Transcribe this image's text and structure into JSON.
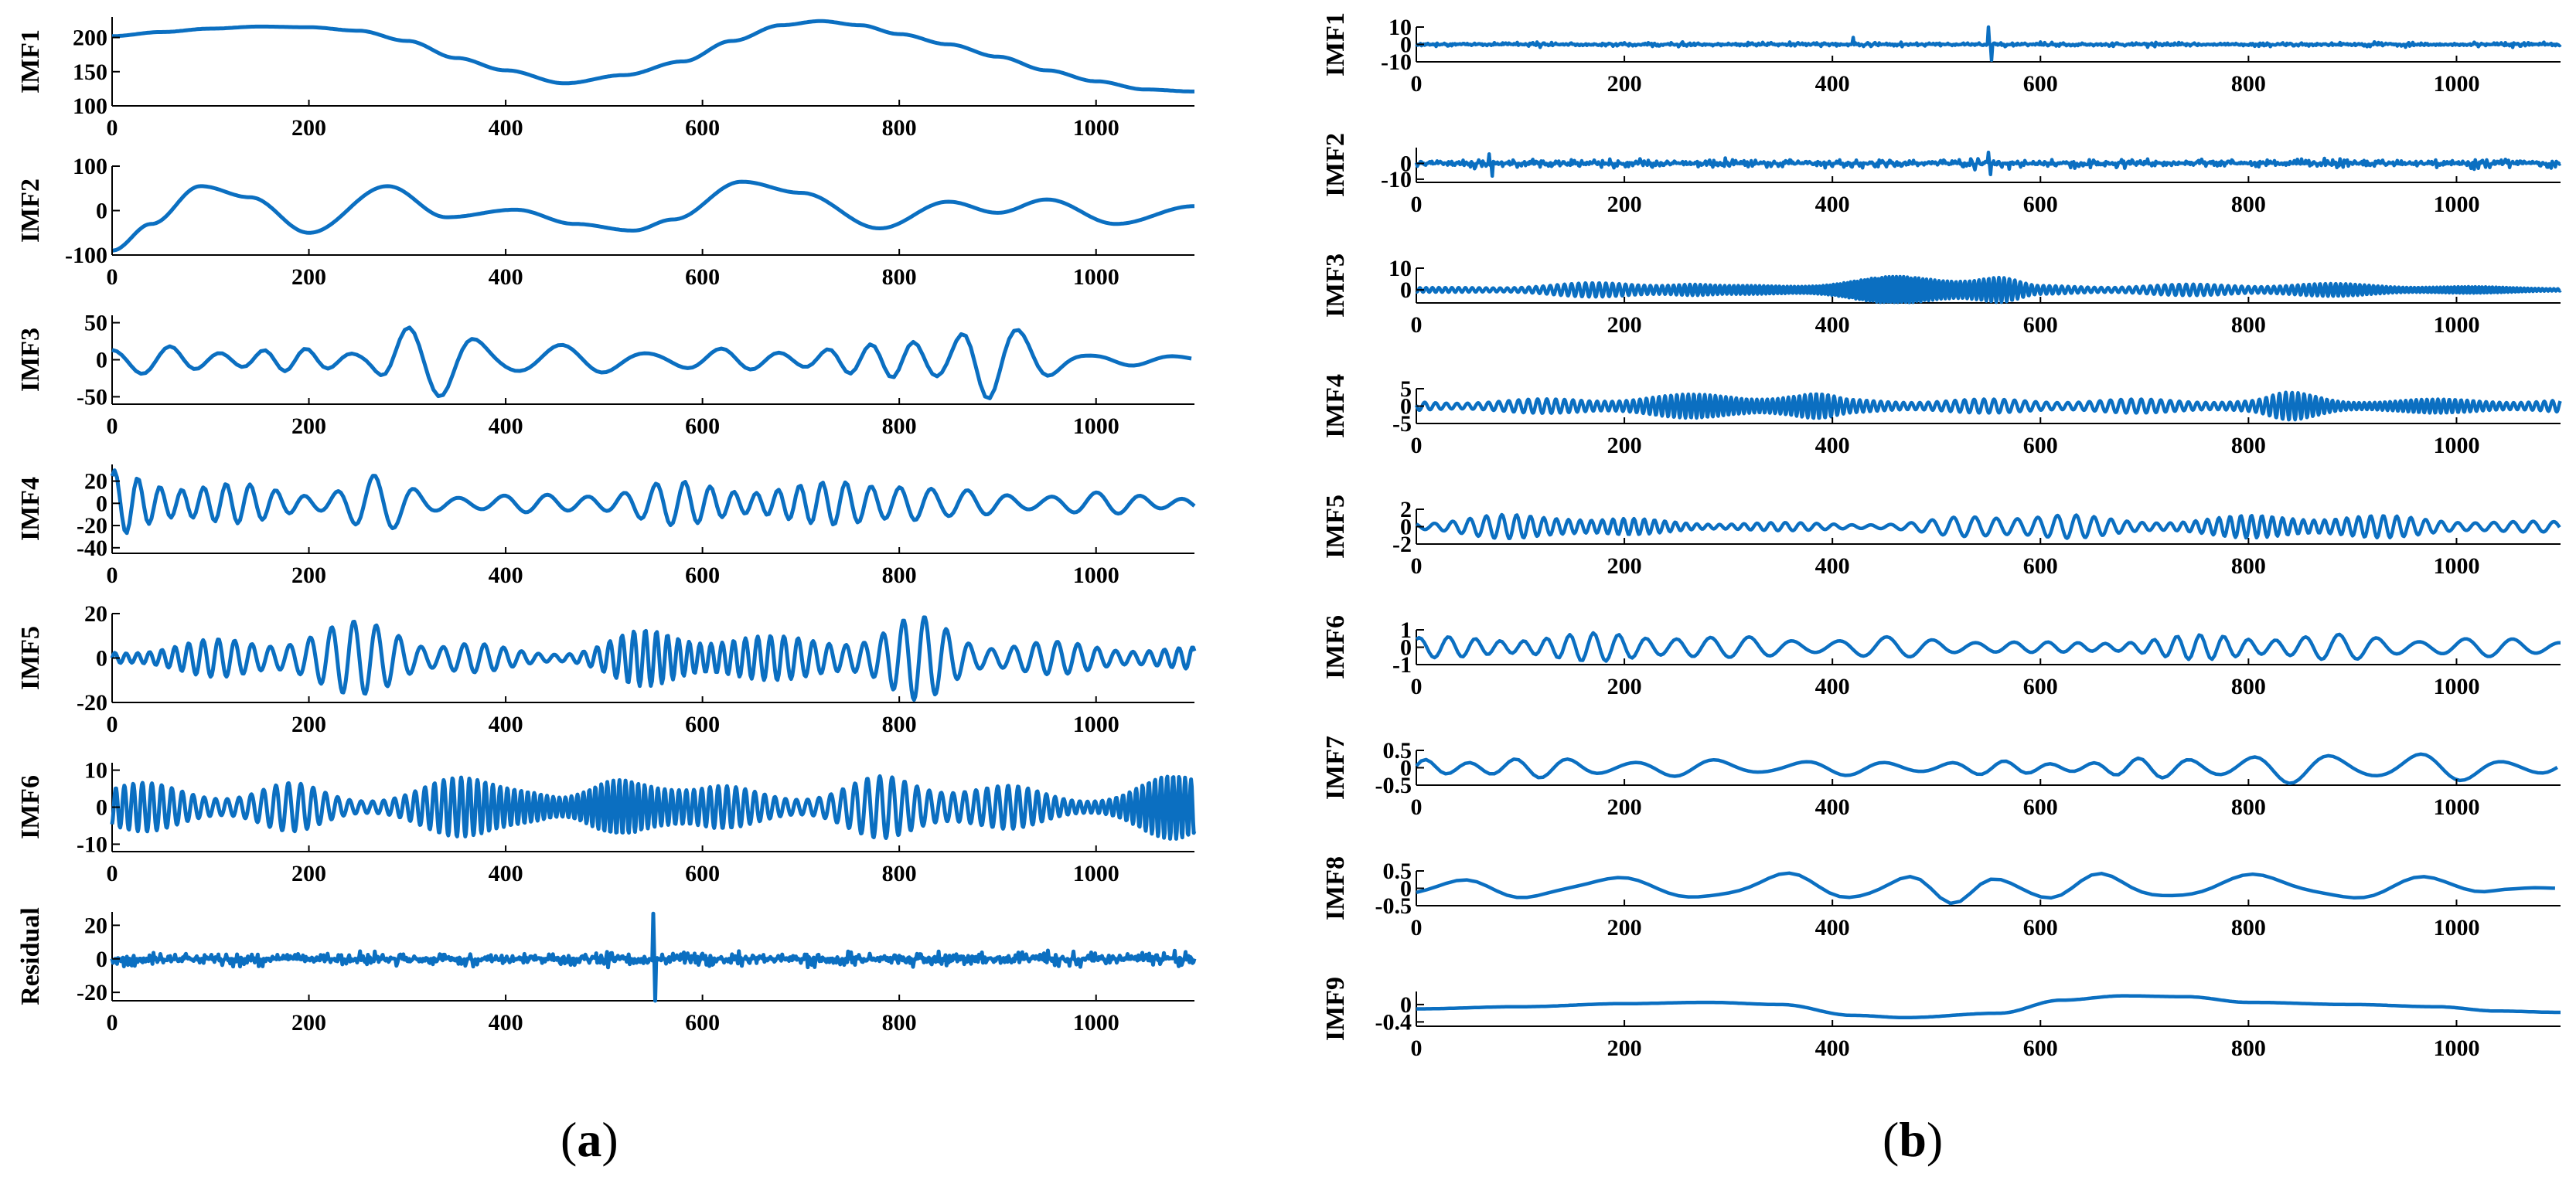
{
  "figure": {
    "caption_a": {
      "open": "(",
      "letter": "a",
      "close": ")"
    },
    "caption_b": {
      "open": "(",
      "letter": "b",
      "close": ")"
    }
  },
  "colors": {
    "line": "#0b6fc1",
    "axis": "#000000"
  },
  "chart_data": [
    {
      "type": "line",
      "panel": "a",
      "title": "",
      "xlabel": "",
      "x_range": [
        0,
        1100
      ],
      "x_ticks": [
        0,
        200,
        400,
        600,
        800,
        1000
      ],
      "series": [
        {
          "name": "IMF1",
          "ylabel": "IMF1",
          "ylim": [
            100,
            230
          ],
          "yticks": [
            100,
            150,
            200
          ],
          "points": [
            [
              0,
              202
            ],
            [
              50,
              208
            ],
            [
              100,
              213
            ],
            [
              150,
              216
            ],
            [
              200,
              215
            ],
            [
              250,
              210
            ],
            [
              300,
              195
            ],
            [
              350,
              170
            ],
            [
              400,
              152
            ],
            [
              460,
              133
            ],
            [
              520,
              145
            ],
            [
              580,
              165
            ],
            [
              630,
              195
            ],
            [
              680,
              218
            ],
            [
              720,
              224
            ],
            [
              760,
              218
            ],
            [
              800,
              205
            ],
            [
              850,
              190
            ],
            [
              900,
              172
            ],
            [
              950,
              152
            ],
            [
              1000,
              136
            ],
            [
              1050,
              124
            ],
            [
              1100,
              121
            ]
          ]
        },
        {
          "name": "IMF2",
          "ylabel": "IMF2",
          "ylim": [
            -100,
            100
          ],
          "yticks": [
            -100,
            0,
            100
          ],
          "synth": {
            "mode": "smooth",
            "offset": 0,
            "amp": 55,
            "base": 120,
            "noise": 0.6,
            "seed": 2
          },
          "points": [
            [
              0,
              -90
            ],
            [
              40,
              -30
            ],
            [
              90,
              55
            ],
            [
              140,
              30
            ],
            [
              200,
              -50
            ],
            [
              280,
              55
            ],
            [
              340,
              -15
            ],
            [
              410,
              2
            ],
            [
              470,
              -30
            ],
            [
              530,
              -45
            ],
            [
              570,
              -20
            ],
            [
              640,
              65
            ],
            [
              700,
              40
            ],
            [
              780,
              -40
            ],
            [
              850,
              20
            ],
            [
              900,
              -5
            ],
            [
              950,
              25
            ],
            [
              1020,
              -30
            ],
            [
              1100,
              10
            ]
          ]
        },
        {
          "name": "IMF3",
          "ylabel": "IMF3",
          "ylim": [
            -60,
            60
          ],
          "yticks": [
            -50,
            0,
            50
          ],
          "synth": {
            "mode": "osc",
            "period": 78,
            "amps": [
              [
                0,
                20
              ],
              [
                250,
                15
              ],
              [
                290,
                55
              ],
              [
                330,
                50
              ],
              [
                400,
                30
              ],
              [
                480,
                20
              ],
              [
                600,
                15
              ],
              [
                760,
                20
              ],
              [
                840,
                45
              ],
              [
                880,
                60
              ],
              [
                930,
                40
              ],
              [
                1000,
                10
              ],
              [
                1100,
                5
              ]
            ],
            "seed": 3
          }
        },
        {
          "name": "IMF4",
          "ylabel": "IMF4",
          "ylim": [
            -45,
            35
          ],
          "yticks": [
            -40,
            -20,
            0,
            20
          ],
          "synth": {
            "mode": "osc",
            "period": 40,
            "amps": [
              [
                0,
                30
              ],
              [
                60,
                25
              ],
              [
                200,
                12
              ],
              [
                260,
                28
              ],
              [
                330,
                10
              ],
              [
                450,
                8
              ],
              [
                560,
                20
              ],
              [
                700,
                18
              ],
              [
                800,
                28
              ],
              [
                850,
                12
              ],
              [
                1000,
                10
              ],
              [
                1100,
                8
              ]
            ],
            "seed": 4
          }
        },
        {
          "name": "IMF5",
          "ylabel": "IMF5",
          "ylim": [
            -20,
            20
          ],
          "yticks": [
            -20,
            0,
            20
          ],
          "synth": {
            "mode": "osc",
            "period": 20,
            "amps": [
              [
                0,
                4
              ],
              [
                150,
                10
              ],
              [
                280,
                18
              ],
              [
                330,
                8
              ],
              [
                450,
                3
              ],
              [
                560,
                14
              ],
              [
                680,
                10
              ],
              [
                760,
                12
              ],
              [
                820,
                19
              ],
              [
                900,
                8
              ],
              [
                1100,
                5
              ]
            ],
            "seed": 5
          }
        },
        {
          "name": "IMF6",
          "ylabel": "IMF6",
          "ylim": [
            -12,
            12
          ],
          "yticks": [
            -10,
            0,
            10
          ],
          "synth": {
            "mode": "osc",
            "period": 11,
            "amps": [
              [
                0,
                8
              ],
              [
                100,
                4
              ],
              [
                170,
                7
              ],
              [
                250,
                3
              ],
              [
                400,
                10
              ],
              [
                460,
                3
              ],
              [
                540,
                11
              ],
              [
                600,
                6
              ],
              [
                700,
                4
              ],
              [
                800,
                9
              ],
              [
                900,
                6
              ],
              [
                1000,
                3
              ],
              [
                1100,
                10
              ]
            ],
            "seed": 6
          }
        },
        {
          "name": "Residual",
          "ylabel": "Residual",
          "ylim": [
            -25,
            28
          ],
          "yticks": [
            -20,
            0,
            20
          ],
          "synth": {
            "mode": "noise",
            "amp": 5,
            "spikes": [
              [
                550,
                27
              ],
              [
                552,
                -25
              ]
            ],
            "seed": 7
          }
        }
      ]
    },
    {
      "type": "line",
      "panel": "b",
      "title": "",
      "xlabel": "",
      "x_range": [
        0,
        1100
      ],
      "x_ticks": [
        0,
        200,
        400,
        600,
        800,
        1000
      ],
      "series": [
        {
          "name": "IMF1",
          "ylabel": "IMF1",
          "ylim": [
            -10,
            10
          ],
          "yticks": [
            -10,
            0,
            10
          ],
          "synth": {
            "mode": "noise",
            "amp": 1.5,
            "spikes": [
              [
                550,
                10
              ],
              [
                553,
                -9
              ],
              [
                420,
                4
              ]
            ],
            "seed": 11
          }
        },
        {
          "name": "IMF2",
          "ylabel": "IMF2",
          "ylim": [
            -12,
            10
          ],
          "yticks": [
            -10,
            0
          ],
          "synth": {
            "mode": "noise",
            "amp": 3.5,
            "spikes": [
              [
                550,
                7
              ],
              [
                552,
                -7
              ],
              [
                70,
                6
              ],
              [
                73,
                -8
              ]
            ],
            "seed": 12
          }
        },
        {
          "name": "IMF3",
          "ylabel": "IMF3",
          "ylim": [
            -6,
            10
          ],
          "yticks": [
            0,
            10
          ],
          "synth": {
            "mode": "osc",
            "period": 6,
            "amps": [
              [
                0,
                1
              ],
              [
                250,
                4
              ],
              [
                300,
                2
              ],
              [
                550,
                8
              ],
              [
                600,
                2
              ],
              [
                850,
                3
              ],
              [
                1100,
                1
              ]
            ],
            "seed": 13
          }
        },
        {
          "name": "IMF4",
          "ylabel": "IMF4",
          "ylim": [
            -5,
            5
          ],
          "yticks": [
            -5,
            0,
            5
          ],
          "synth": {
            "mode": "osc",
            "period": 9,
            "amps": [
              [
                0,
                1.5
              ],
              [
                380,
                4
              ],
              [
                420,
                2
              ],
              [
                800,
                2
              ],
              [
                840,
                4
              ],
              [
                900,
                2
              ],
              [
                1100,
                2
              ]
            ],
            "seed": 14
          }
        },
        {
          "name": "IMF5",
          "ylabel": "IMF5",
          "ylim": [
            -2,
            2
          ],
          "yticks": [
            -2,
            0,
            2
          ],
          "synth": {
            "mode": "osc",
            "period": 18,
            "amps": [
              [
                0,
                0.6
              ],
              [
                130,
                1.8
              ],
              [
                180,
                1
              ],
              [
                300,
                0.5
              ],
              [
                450,
                0.4
              ],
              [
                580,
                1.8
              ],
              [
                700,
                0.8
              ],
              [
                850,
                1.5
              ],
              [
                1100,
                0.6
              ]
            ],
            "seed": 15
          }
        },
        {
          "name": "IMF6",
          "ylabel": "IMF6",
          "ylim": [
            -1,
            1
          ],
          "yticks": [
            -1,
            0,
            1
          ],
          "synth": {
            "mode": "osc",
            "period": 40,
            "amps": [
              [
                0,
                0.6
              ],
              [
                250,
                0.9
              ],
              [
                300,
                0.6
              ],
              [
                500,
                0.6
              ],
              [
                600,
                0.3
              ],
              [
                800,
                0.8
              ],
              [
                1100,
                0.5
              ]
            ],
            "seed": 16
          }
        },
        {
          "name": "IMF7",
          "ylabel": "IMF7",
          "ylim": [
            -0.5,
            0.5
          ],
          "yticks": [
            -0.5,
            0,
            0.5
          ],
          "synth": {
            "mode": "osc",
            "period": 75,
            "amps": [
              [
                0,
                0.3
              ],
              [
                600,
                0.2
              ],
              [
                850,
                0.45
              ],
              [
                950,
                0.45
              ],
              [
                1100,
                0.25
              ]
            ],
            "seed": 17
          }
        },
        {
          "name": "IMF8",
          "ylabel": "IMF8",
          "ylim": [
            -0.5,
            0.5
          ],
          "yticks": [
            -0.5,
            0,
            0.5
          ],
          "synth": {
            "mode": "osc",
            "period": 155,
            "amps": [
              [
                0,
                0.3
              ],
              [
                400,
                0.45
              ],
              [
                1000,
                0.4
              ],
              [
                1050,
                0.05
              ],
              [
                1100,
                0.0
              ]
            ],
            "offset": 0.0,
            "seed": 18
          }
        },
        {
          "name": "IMF9",
          "ylabel": "IMF9",
          "ylim": [
            -0.5,
            0.3
          ],
          "yticks": [
            -0.4,
            0
          ],
          "points": [
            [
              0,
              -0.1
            ],
            [
              100,
              -0.05
            ],
            [
              200,
              0.02
            ],
            [
              280,
              0.05
            ],
            [
              350,
              0.0
            ],
            [
              420,
              -0.25
            ],
            [
              470,
              -0.3
            ],
            [
              560,
              -0.2
            ],
            [
              620,
              0.1
            ],
            [
              680,
              0.2
            ],
            [
              740,
              0.18
            ],
            [
              800,
              0.05
            ],
            [
              900,
              0.0
            ],
            [
              980,
              -0.05
            ],
            [
              1040,
              -0.15
            ],
            [
              1100,
              -0.18
            ]
          ]
        }
      ]
    }
  ]
}
